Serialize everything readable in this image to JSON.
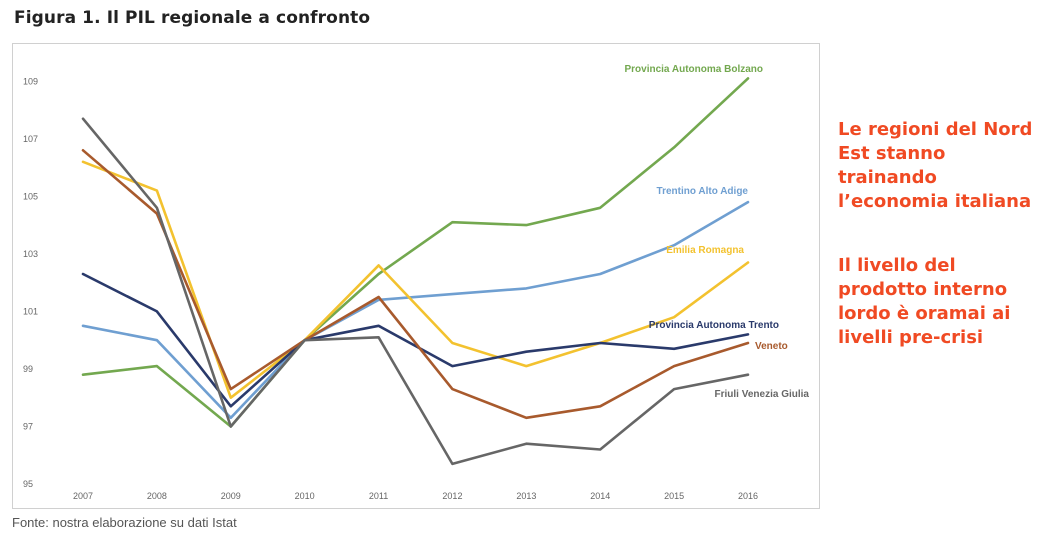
{
  "figure": {
    "title": "Figura 1. Il PIL regionale a confronto",
    "caption": "Fonte: nostra elaborazione su dati Istat"
  },
  "sidebar": {
    "paragraph_1": "Le regioni del Nord Est stanno trainando l’economia italiana",
    "paragraph_2": "Il livello del prodotto interno lordo è oramai ai livelli pre-crisi",
    "color": "#f04a23"
  },
  "chart_data": {
    "type": "line",
    "title": "",
    "xlabel": "",
    "ylabel": "",
    "categories": [
      "2007",
      "2008",
      "2009",
      "2010",
      "2011",
      "2012",
      "2013",
      "2014",
      "2015",
      "2016"
    ],
    "yticks": [
      95,
      97,
      99,
      101,
      103,
      105,
      107,
      109
    ],
    "ylim": [
      95,
      109.6
    ],
    "grid": false,
    "series": [
      {
        "name": "Provincia Autonoma Bolzano",
        "color": "#73a84f",
        "values": [
          98.8,
          99.1,
          97.0,
          100.0,
          102.3,
          104.1,
          104.0,
          104.6,
          106.7,
          109.1
        ]
      },
      {
        "name": "Trentino Alto Adige",
        "color": "#6f9fd1",
        "values": [
          100.5,
          100.0,
          97.3,
          100.0,
          101.4,
          101.6,
          101.8,
          102.3,
          103.3,
          104.8
        ]
      },
      {
        "name": "Emilia Romagna",
        "color": "#f3c22f",
        "values": [
          106.2,
          105.2,
          98.0,
          100.0,
          102.6,
          99.9,
          99.1,
          99.9,
          100.8,
          102.7
        ]
      },
      {
        "name": "Provincia Autonoma Trento",
        "color": "#2a3a6b",
        "values": [
          102.3,
          101.0,
          97.7,
          100.0,
          100.5,
          99.1,
          99.6,
          99.9,
          99.7,
          100.2
        ]
      },
      {
        "name": "Veneto",
        "color": "#a85a2d",
        "values": [
          106.6,
          104.4,
          98.3,
          100.0,
          101.5,
          98.3,
          97.3,
          97.7,
          99.1,
          99.9
        ]
      },
      {
        "name": "Friuli Venezia Giulia",
        "color": "#666666",
        "values": [
          107.7,
          104.6,
          97.0,
          100.0,
          100.1,
          95.7,
          96.4,
          96.2,
          98.3,
          98.8
        ]
      }
    ]
  }
}
